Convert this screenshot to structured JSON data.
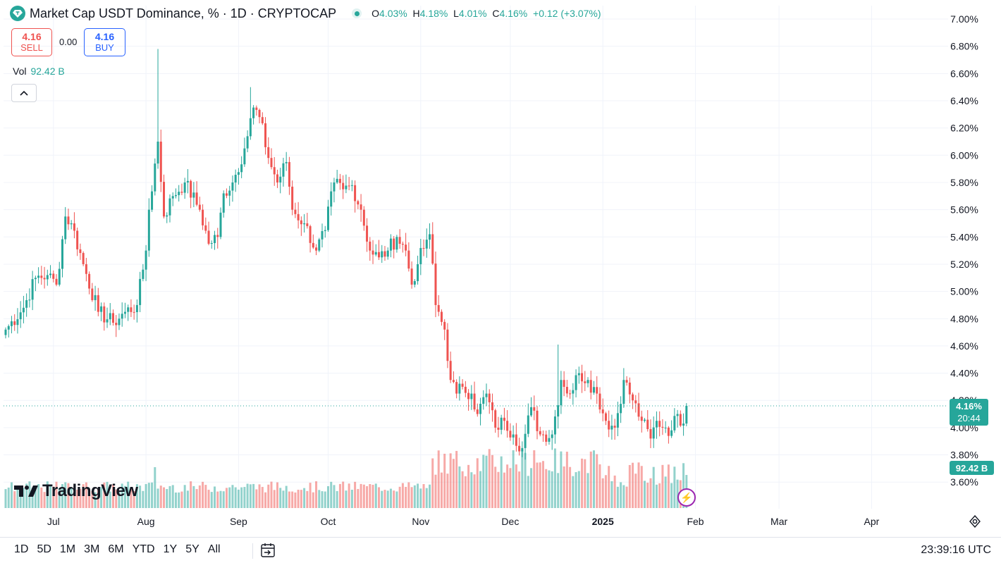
{
  "header": {
    "title": "Market Cap USDT Dominance, % · 1D · CRYPTOCAP",
    "ohlc": {
      "o_label": "O",
      "o": "4.03%",
      "h_label": "H",
      "h": "4.18%",
      "l_label": "L",
      "l": "4.01%",
      "c_label": "C",
      "c": "4.16%",
      "change": "+0.12 (+3.07%)"
    }
  },
  "trade": {
    "sell_price": "4.16",
    "sell_label": "SELL",
    "spread": "0.00",
    "buy_price": "4.16",
    "buy_label": "BUY"
  },
  "volume": {
    "label": "Vol",
    "value": "92.42 B"
  },
  "brand": "TradingView",
  "price_tag": {
    "value": "4.16%",
    "countdown": "20:44"
  },
  "volume_tag": "92.42 B",
  "bottom": {
    "ranges": [
      "1D",
      "5D",
      "1M",
      "3M",
      "6M",
      "YTD",
      "1Y",
      "5Y",
      "All"
    ],
    "clock": "23:39:16 UTC"
  },
  "colors": {
    "up": "#26a69a",
    "down": "#ef5350",
    "grid": "#f0f3fa",
    "text": "#131722"
  },
  "icons": [
    "usdt-logo-icon",
    "chevron-up-icon",
    "lightning-icon",
    "settings-icon",
    "date-range-icon"
  ],
  "chart_data": {
    "type": "candlestick",
    "title": "Market Cap USDT Dominance, % · 1D · CRYPTOCAP",
    "y_unit": "%",
    "ylim": [
      3.5,
      7.05
    ],
    "y_ticks": [
      "7.00%",
      "6.80%",
      "6.60%",
      "6.40%",
      "6.20%",
      "6.00%",
      "5.80%",
      "5.60%",
      "5.40%",
      "5.20%",
      "5.00%",
      "4.80%",
      "4.60%",
      "4.40%",
      "4.20%",
      "4.00%",
      "3.80%",
      "3.60%"
    ],
    "x_ticks": [
      "Jul",
      "Aug",
      "Sep",
      "Oct",
      "Nov",
      "Dec",
      "2025",
      "Feb",
      "Mar",
      "Apr"
    ],
    "x_range_days": [
      0,
      294
    ],
    "x_tick_days": [
      16,
      47,
      78,
      108,
      139,
      169,
      200,
      231,
      259,
      290
    ],
    "first_day": "2024-06-15",
    "close_waypoints": [
      [
        0,
        4.72
      ],
      [
        6,
        4.88
      ],
      [
        10,
        5.1
      ],
      [
        14,
        5.12
      ],
      [
        17,
        5.05
      ],
      [
        20,
        5.55
      ],
      [
        22,
        5.5
      ],
      [
        26,
        5.2
      ],
      [
        31,
        4.85
      ],
      [
        36,
        4.77
      ],
      [
        40,
        4.85
      ],
      [
        44,
        4.9
      ],
      [
        47,
        5.3
      ],
      [
        48,
        5.6
      ],
      [
        51,
        6.1
      ],
      [
        53,
        5.55
      ],
      [
        56,
        5.7
      ],
      [
        60,
        5.8
      ],
      [
        65,
        5.6
      ],
      [
        68,
        5.35
      ],
      [
        71,
        5.4
      ],
      [
        73,
        5.72
      ],
      [
        76,
        5.8
      ],
      [
        80,
        6.05
      ],
      [
        83,
        6.35
      ],
      [
        85,
        6.28
      ],
      [
        88,
        5.98
      ],
      [
        91,
        5.8
      ],
      [
        94,
        5.95
      ],
      [
        96,
        5.6
      ],
      [
        100,
        5.5
      ],
      [
        104,
        5.3
      ],
      [
        107,
        5.45
      ],
      [
        110,
        5.8
      ],
      [
        113,
        5.75
      ],
      [
        116,
        5.78
      ],
      [
        119,
        5.6
      ],
      [
        122,
        5.3
      ],
      [
        125,
        5.25
      ],
      [
        128,
        5.3
      ],
      [
        131,
        5.4
      ],
      [
        134,
        5.3
      ],
      [
        136,
        5.05
      ],
      [
        138,
        5.2
      ],
      [
        141,
        5.38
      ],
      [
        142,
        5.42
      ],
      [
        144,
        4.9
      ],
      [
        147,
        4.72
      ],
      [
        149,
        4.35
      ],
      [
        151,
        4.25
      ],
      [
        153,
        4.3
      ],
      [
        156,
        4.25
      ],
      [
        158,
        4.1
      ],
      [
        161,
        4.25
      ],
      [
        164,
        4.0
      ],
      [
        167,
        4.05
      ],
      [
        170,
        3.95
      ],
      [
        173,
        3.85
      ],
      [
        176,
        4.15
      ],
      [
        179,
        3.95
      ],
      [
        183,
        3.95
      ],
      [
        186,
        4.35
      ],
      [
        189,
        4.25
      ],
      [
        192,
        4.4
      ],
      [
        195,
        4.35
      ],
      [
        198,
        4.25
      ],
      [
        201,
        4.05
      ],
      [
        204,
        4.0
      ],
      [
        207,
        4.35
      ],
      [
        210,
        4.2
      ],
      [
        213,
        4.05
      ],
      [
        216,
        3.92
      ],
      [
        218,
        4.05
      ],
      [
        221,
        4.0
      ],
      [
        223,
        3.98
      ],
      [
        225,
        4.1
      ],
      [
        227,
        4.03
      ],
      [
        228,
        4.16
      ]
    ],
    "last": {
      "date": "2025-01-30",
      "open": 4.03,
      "high": 4.18,
      "low": 4.01,
      "close": 4.16,
      "volume": "92.42 B"
    },
    "volume_note": "volume bars colored by candle direction"
  }
}
